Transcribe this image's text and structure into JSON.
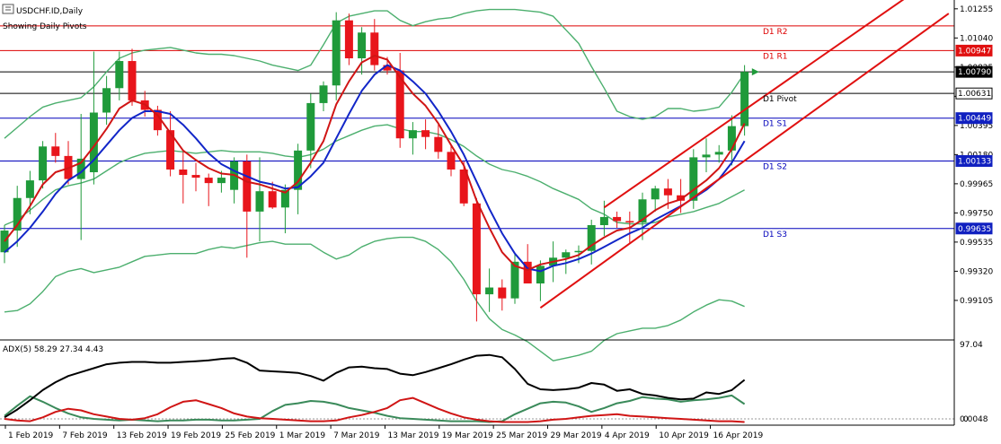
{
  "header": {
    "symbol_label": "USDCHF.ID,Daily",
    "subtitle": "Showing Daily Pivots"
  },
  "chart_data": {
    "type": "candlestick",
    "symbol": "USDCHF.ID",
    "timeframe": "Daily",
    "price_range": [
      0.9882,
      1.0132
    ],
    "price_ticks": [
      1.01255,
      1.0104,
      1.00825,
      1.0061,
      1.00395,
      1.0018,
      0.99965,
      0.9975,
      0.99535,
      0.9932,
      0.99105
    ],
    "date_labels": [
      "1 Feb 2019",
      "7 Feb 2019",
      "13 Feb 2019",
      "19 Feb 2019",
      "25 Feb 2019",
      "1 Mar 2019",
      "7 Mar 2019",
      "13 Mar 2019",
      "19 Mar 2019",
      "25 Mar 2019",
      "29 Mar 2019",
      "4 Apr 2019",
      "10 Apr 2019",
      "16 Apr 2019"
    ],
    "candles": [
      {
        "o": 0.9946,
        "h": 0.9966,
        "l": 0.9938,
        "c": 0.9962
      },
      {
        "o": 0.9962,
        "h": 0.9995,
        "l": 0.995,
        "c": 0.9986
      },
      {
        "o": 0.9986,
        "h": 1.0006,
        "l": 0.9974,
        "c": 0.9999
      },
      {
        "o": 0.9999,
        "h": 1.0028,
        "l": 0.9993,
        "c": 1.0024
      },
      {
        "o": 1.0024,
        "h": 1.0034,
        "l": 1.0012,
        "c": 1.0017
      },
      {
        "o": 1.0017,
        "h": 1.0028,
        "l": 0.9996,
        "c": 1.0
      },
      {
        "o": 1.0,
        "h": 1.0048,
        "l": 0.9955,
        "c": 1.0015
      },
      {
        "o": 1.0005,
        "h": 1.0094,
        "l": 0.9996,
        "c": 1.0049
      },
      {
        "o": 1.0049,
        "h": 1.0076,
        "l": 1.004,
        "c": 1.0067
      },
      {
        "o": 1.0067,
        "h": 1.0094,
        "l": 1.0058,
        "c": 1.0087
      },
      {
        "o": 1.0087,
        "h": 1.0096,
        "l": 1.0054,
        "c": 1.0058
      },
      {
        "o": 1.0058,
        "h": 1.0065,
        "l": 1.0046,
        "c": 1.0051
      },
      {
        "o": 1.0051,
        "h": 1.0054,
        "l": 1.0032,
        "c": 1.0036
      },
      {
        "o": 1.0036,
        "h": 1.005,
        "l": 1.0002,
        "c": 1.0007
      },
      {
        "o": 1.0007,
        "h": 1.002,
        "l": 0.9982,
        "c": 1.0003
      },
      {
        "o": 1.0003,
        "h": 1.0012,
        "l": 0.9991,
        "c": 1.0001
      },
      {
        "o": 1.0001,
        "h": 1.0004,
        "l": 0.998,
        "c": 0.9997
      },
      {
        "o": 0.9997,
        "h": 1.0006,
        "l": 0.999,
        "c": 1.0001
      },
      {
        "o": 0.9992,
        "h": 1.0016,
        "l": 0.9982,
        "c": 1.0013
      },
      {
        "o": 1.0013,
        "h": 1.0018,
        "l": 0.9942,
        "c": 0.9976
      },
      {
        "o": 0.9976,
        "h": 1.0016,
        "l": 0.9954,
        "c": 0.9991
      },
      {
        "o": 0.9991,
        "h": 0.9998,
        "l": 0.9978,
        "c": 0.9979
      },
      {
        "o": 0.9979,
        "h": 0.9996,
        "l": 0.996,
        "c": 0.9992
      },
      {
        "o": 0.9992,
        "h": 1.0026,
        "l": 0.9974,
        "c": 1.0021
      },
      {
        "o": 1.0021,
        "h": 1.0063,
        "l": 1.0008,
        "c": 1.0056
      },
      {
        "o": 1.0056,
        "h": 1.0072,
        "l": 1.005,
        "c": 1.0069
      },
      {
        "o": 1.0069,
        "h": 1.0123,
        "l": 1.0058,
        "c": 1.0117
      },
      {
        "o": 1.0117,
        "h": 1.0122,
        "l": 1.0084,
        "c": 1.0089
      },
      {
        "o": 1.0089,
        "h": 1.0112,
        "l": 1.0077,
        "c": 1.0108
      },
      {
        "o": 1.0108,
        "h": 1.0118,
        "l": 1.008,
        "c": 1.0084
      },
      {
        "o": 1.0084,
        "h": 1.009,
        "l": 1.0077,
        "c": 1.008
      },
      {
        "o": 1.008,
        "h": 1.0093,
        "l": 1.0023,
        "c": 1.003
      },
      {
        "o": 1.003,
        "h": 1.0042,
        "l": 1.0018,
        "c": 1.0036
      },
      {
        "o": 1.0036,
        "h": 1.0044,
        "l": 1.0022,
        "c": 1.0031
      },
      {
        "o": 1.0031,
        "h": 1.004,
        "l": 1.0015,
        "c": 1.002
      },
      {
        "o": 1.002,
        "h": 1.0025,
        "l": 1.0002,
        "c": 1.0007
      },
      {
        "o": 1.0007,
        "h": 1.0013,
        "l": 0.998,
        "c": 0.9982
      },
      {
        "o": 0.9982,
        "h": 0.9986,
        "l": 0.9895,
        "c": 0.9915
      },
      {
        "o": 0.9915,
        "h": 0.9934,
        "l": 0.9902,
        "c": 0.992
      },
      {
        "o": 0.992,
        "h": 0.9926,
        "l": 0.9903,
        "c": 0.9912
      },
      {
        "o": 0.9912,
        "h": 0.9945,
        "l": 0.9908,
        "c": 0.9939
      },
      {
        "o": 0.9939,
        "h": 0.9952,
        "l": 0.9923,
        "c": 0.9923
      },
      {
        "o": 0.9923,
        "h": 0.994,
        "l": 0.991,
        "c": 0.9936
      },
      {
        "o": 0.9936,
        "h": 0.9954,
        "l": 0.9924,
        "c": 0.9942
      },
      {
        "o": 0.9942,
        "h": 0.9948,
        "l": 0.993,
        "c": 0.9946
      },
      {
        "o": 0.9946,
        "h": 0.9951,
        "l": 0.9938,
        "c": 0.9947
      },
      {
        "o": 0.9947,
        "h": 0.997,
        "l": 0.9937,
        "c": 0.9966
      },
      {
        "o": 0.9966,
        "h": 0.9984,
        "l": 0.9958,
        "c": 0.9972
      },
      {
        "o": 0.9972,
        "h": 0.9976,
        "l": 0.9964,
        "c": 0.9969
      },
      {
        "o": 0.9969,
        "h": 0.9976,
        "l": 0.9953,
        "c": 0.9968
      },
      {
        "o": 0.9968,
        "h": 0.999,
        "l": 0.9955,
        "c": 0.9985
      },
      {
        "o": 0.9985,
        "h": 0.9995,
        "l": 0.9976,
        "c": 0.9993
      },
      {
        "o": 0.9993,
        "h": 1.0,
        "l": 0.9978,
        "c": 0.9988
      },
      {
        "o": 0.9988,
        "h": 1.0,
        "l": 0.9975,
        "c": 0.9984
      },
      {
        "o": 0.9984,
        "h": 1.0022,
        "l": 0.9978,
        "c": 1.0016
      },
      {
        "o": 1.0016,
        "h": 1.003,
        "l": 1.0005,
        "c": 1.0018
      },
      {
        "o": 1.0018,
        "h": 1.0025,
        "l": 1.0012,
        "c": 1.002
      },
      {
        "o": 1.0021,
        "h": 1.0047,
        "l": 1.001,
        "c": 1.0039
      },
      {
        "o": 1.0039,
        "h": 1.0084,
        "l": 1.0032,
        "c": 1.0079
      }
    ],
    "bands": {
      "upper_band": [
        1.003,
        1.0038,
        1.0046,
        1.0053,
        1.0056,
        1.0058,
        1.006,
        1.0068,
        1.0079,
        1.0089,
        1.0093,
        1.0095,
        1.0096,
        1.0097,
        1.0095,
        1.0093,
        1.0092,
        1.0092,
        1.0091,
        1.0089,
        1.0087,
        1.0084,
        1.0082,
        1.008,
        1.0084,
        1.0099,
        1.0115,
        1.012,
        1.0122,
        1.0124,
        1.0124,
        1.0117,
        1.0113,
        1.0116,
        1.0118,
        1.0119,
        1.0122,
        1.0124,
        1.0125,
        1.0125,
        1.0125,
        1.0124,
        1.0123,
        1.012,
        1.011,
        1.01,
        1.0083,
        1.0067,
        1.005,
        1.0046,
        1.0044,
        1.0046,
        1.0052,
        1.0052,
        1.005,
        1.0051,
        1.0053,
        1.0064,
        1.0078
      ],
      "middle_band": [
        0.9966,
        0.997,
        0.9977,
        0.9985,
        0.9992,
        0.9995,
        0.9997,
        1.0,
        1.0006,
        1.0012,
        1.0016,
        1.0019,
        1.002,
        1.0021,
        1.002,
        1.0019,
        1.002,
        1.0021,
        1.002,
        1.002,
        1.002,
        1.0019,
        1.0017,
        1.0016,
        1.0018,
        1.0022,
        1.0028,
        1.0032,
        1.0036,
        1.0039,
        1.004,
        1.0037,
        1.0035,
        1.0035,
        1.0033,
        1.0029,
        1.0024,
        1.0017,
        1.0011,
        1.0007,
        1.0005,
        1.0002,
        0.9998,
        0.9993,
        0.9989,
        0.9985,
        0.9978,
        0.9974,
        0.9968,
        0.9967,
        0.9967,
        0.9968,
        0.9972,
        0.9974,
        0.9976,
        0.9979,
        0.9982,
        0.9987,
        0.9992
      ],
      "lower_band": [
        0.9902,
        0.9903,
        0.9908,
        0.9917,
        0.9928,
        0.9932,
        0.9934,
        0.9931,
        0.9933,
        0.9935,
        0.9939,
        0.9943,
        0.9944,
        0.9945,
        0.9945,
        0.9945,
        0.9948,
        0.995,
        0.9949,
        0.9951,
        0.9953,
        0.9954,
        0.9952,
        0.9952,
        0.9952,
        0.9946,
        0.9941,
        0.9944,
        0.995,
        0.9954,
        0.9956,
        0.9957,
        0.9957,
        0.9954,
        0.9948,
        0.9939,
        0.9926,
        0.991,
        0.9897,
        0.9889,
        0.9885,
        0.988,
        0.9873,
        0.9866,
        0.9868,
        0.987,
        0.9873,
        0.9881,
        0.9886,
        0.9888,
        0.989,
        0.989,
        0.9892,
        0.9896,
        0.9902,
        0.9907,
        0.9911,
        0.991,
        0.9906
      ],
      "fast_ma": [
        0.9954,
        0.9966,
        0.998,
        0.9996,
        1.0005,
        1.0008,
        1.0012,
        1.0024,
        1.0037,
        1.0052,
        1.0058,
        1.0055,
        1.0047,
        1.0034,
        1.0021,
        1.0014,
        1.0008,
        1.0004,
        1.0003,
        0.9998,
        0.9996,
        0.9993,
        0.999,
        0.9998,
        1.0012,
        1.0028,
        1.0055,
        1.0072,
        1.0086,
        1.0091,
        1.0088,
        1.0075,
        1.0063,
        1.0054,
        1.0041,
        1.0025,
        1.001,
        0.9984,
        0.9964,
        0.9946,
        0.9936,
        0.9933,
        0.9937,
        0.9939,
        0.9941,
        0.9944,
        0.9951,
        0.9957,
        0.9962,
        0.9964,
        0.997,
        0.9977,
        0.9982,
        0.9985,
        0.9992,
        0.9999,
        1.0008,
        1.0022,
        1.0041
      ],
      "slow_ma": [
        0.9946,
        0.9954,
        0.9964,
        0.9976,
        0.9989,
        0.9999,
        1.0005,
        1.0014,
        1.0025,
        1.0036,
        1.0045,
        1.005,
        1.005,
        1.0048,
        1.004,
        1.003,
        1.0019,
        1.0011,
        1.0006,
        1.0002,
        0.9998,
        0.9996,
        0.9993,
        0.9994,
        1.0002,
        1.0012,
        1.003,
        1.0048,
        1.0065,
        1.0077,
        1.0084,
        1.008,
        1.0072,
        1.0063,
        1.005,
        1.0035,
        1.0018,
        0.9998,
        0.9978,
        0.996,
        0.9945,
        0.9934,
        0.9932,
        0.9936,
        0.9938,
        0.9941,
        0.9945,
        0.995,
        0.9955,
        0.996,
        0.9964,
        0.997,
        0.9975,
        0.998,
        0.9986,
        0.9992,
        1.0,
        1.0012,
        1.0028
      ]
    },
    "pivots": [
      {
        "label": "D1 R2",
        "price": 1.01129,
        "color": "#dd0000"
      },
      {
        "label": "D1 R1",
        "price": 1.00947,
        "color": "#dd0000"
      },
      {
        "label": "D1 Pivot",
        "price": 1.00631,
        "color": "#000000"
      },
      {
        "label": "D1 S1",
        "price": 1.00449,
        "color": "#0000bb"
      },
      {
        "label": "D1 S2",
        "price": 1.00133,
        "color": "#0000bb"
      },
      {
        "label": "D1 S3",
        "price": 0.99635,
        "color": "#0000bb"
      }
    ],
    "price_tags": [
      {
        "price": 1.00947,
        "text": "1.00947",
        "style": "red"
      },
      {
        "price": 1.0079,
        "text": "1.00790",
        "style": "black"
      },
      {
        "price": 1.00631,
        "text": "1.00631",
        "style": "white"
      },
      {
        "price": 1.00449,
        "text": "1.00449",
        "style": "blue"
      },
      {
        "price": 1.00133,
        "text": "1.00133",
        "style": "blue"
      },
      {
        "price": 0.99635,
        "text": "0.99635",
        "style": "blue"
      }
    ],
    "extra_hlines": [
      {
        "price": 1.0079,
        "color": "#000000"
      }
    ],
    "channel": {
      "upper": {
        "start": [
          47,
          0.9979
        ],
        "end": [
          71,
          1.0136
        ]
      },
      "lower": {
        "start": [
          42,
          0.9905
        ],
        "end": [
          74,
          1.0122
        ]
      }
    },
    "adx": {
      "label": "ADX(5) 58.29 27.34 4.43",
      "range": [
        0,
        100
      ],
      "ticks": [
        97.04,
        0.0048,
        0.0
      ],
      "adx": [
        10,
        20,
        32,
        45,
        55,
        63,
        68,
        73,
        78,
        80,
        81,
        81,
        80,
        80,
        81,
        82,
        83,
        85,
        86,
        80,
        70,
        69,
        68,
        67,
        63,
        57,
        67,
        74,
        75,
        73,
        72,
        66,
        64,
        68,
        73,
        78,
        84,
        89,
        90,
        87,
        72,
        53,
        46,
        45,
        46,
        48,
        54,
        52,
        44,
        46,
        40,
        38,
        35,
        33,
        34,
        42,
        40,
        45,
        58
      ],
      "plus_di": [
        12,
        25,
        37,
        30,
        22,
        15,
        10,
        8,
        7,
        6,
        7,
        6,
        5,
        6,
        6,
        7,
        7,
        6,
        6,
        7,
        8,
        18,
        26,
        28,
        31,
        30,
        27,
        22,
        19,
        16,
        12,
        9,
        8,
        7,
        6,
        5,
        5,
        5,
        4,
        5,
        14,
        21,
        28,
        30,
        29,
        24,
        17,
        22,
        28,
        31,
        36,
        34,
        33,
        30,
        32,
        33,
        35,
        38,
        27
      ],
      "minus_di": [
        8,
        6,
        5,
        10,
        17,
        21,
        19,
        14,
        11,
        8,
        7,
        9,
        14,
        23,
        30,
        32,
        27,
        22,
        15,
        11,
        9,
        8,
        7,
        6,
        5,
        5,
        6,
        10,
        13,
        17,
        22,
        32,
        35,
        28,
        21,
        15,
        10,
        7,
        5,
        4,
        4,
        4,
        5,
        7,
        8,
        10,
        12,
        13,
        14,
        12,
        11,
        10,
        9,
        8,
        7,
        6,
        5,
        5,
        4
      ]
    }
  }
}
